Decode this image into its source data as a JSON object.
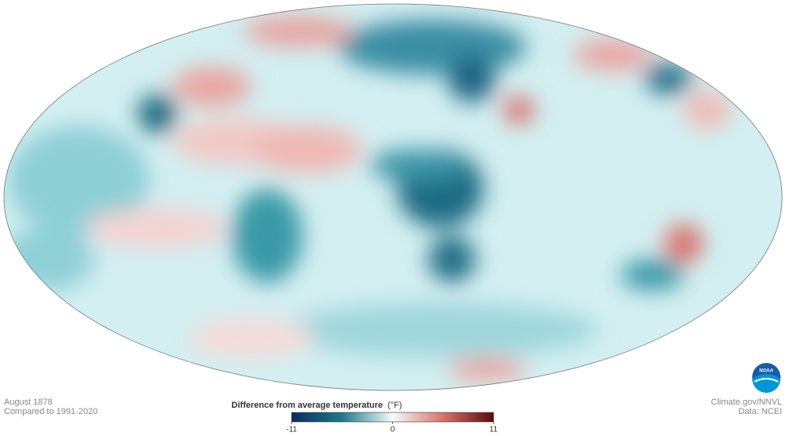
{
  "map": {
    "period": "August 1878",
    "baseline": "Compared to 1991-2020"
  },
  "colorbar": {
    "title": "Difference from average temperature",
    "unit": "(°F)",
    "range": [
      -11,
      11
    ],
    "ticks": [
      -11,
      0,
      11
    ]
  },
  "credits": {
    "source": "Climate.gov/NNVL",
    "data": "Data: NCEI",
    "logo": "NOAA"
  }
}
